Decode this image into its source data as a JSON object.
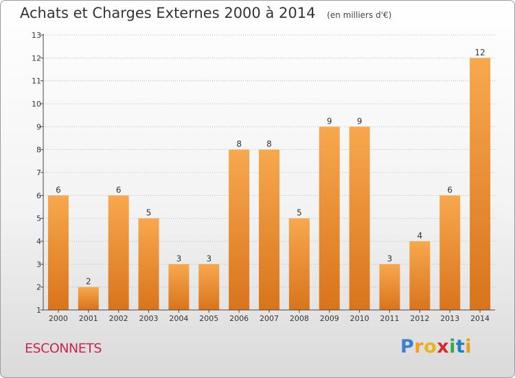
{
  "header": {
    "title": "Achats et Charges Externes 2000 à 2014",
    "unit": "(en milliers d'€)"
  },
  "footer": {
    "city": "ESCONNETS",
    "logo_letters": [
      "P",
      "r",
      "o",
      "x",
      "i",
      "t",
      "i"
    ],
    "logo_colors": [
      "#3b7fd0",
      "#f2a019",
      "#e8b618",
      "#d62b2b",
      "#3aa84a",
      "#1f7fc7",
      "#e8a018"
    ]
  },
  "colors": {
    "bar_light": "#f8a84e",
    "bar_dark": "#d8741c",
    "axis": "#444444",
    "grid": "#bbbbbb"
  },
  "chart_data": {
    "type": "bar",
    "categories": [
      "2000",
      "2001",
      "2002",
      "2003",
      "2004",
      "2005",
      "2006",
      "2007",
      "2008",
      "2009",
      "2010",
      "2011",
      "2012",
      "2013",
      "2014"
    ],
    "values": [
      6,
      2,
      6,
      5,
      3,
      3,
      8,
      8,
      5,
      9,
      9,
      3,
      4,
      6,
      12
    ],
    "data_labels": [
      "6",
      "2",
      "6",
      "5",
      "3",
      "3",
      "8",
      "8",
      "5",
      "9",
      "9",
      "3",
      "4",
      "6",
      "12"
    ],
    "yticks": [
      "1",
      "2",
      "3",
      "4",
      "5",
      "6",
      "7",
      "8",
      "9",
      "10",
      "11",
      "12",
      "13"
    ],
    "ylim": [
      1,
      13
    ],
    "grid": true
  }
}
